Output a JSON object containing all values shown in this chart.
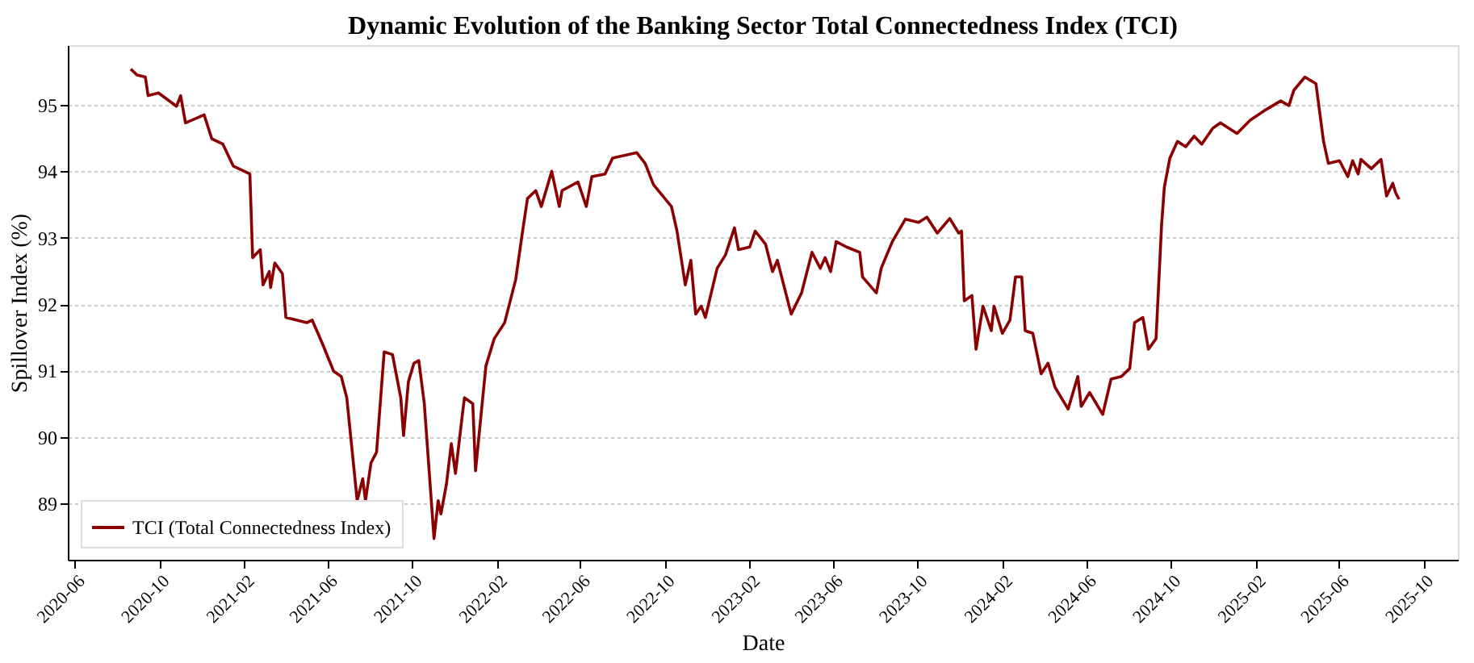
{
  "chart_data": {
    "type": "line",
    "title": "Dynamic Evolution of the Banking Sector Total Connectedness Index (TCI)",
    "xlabel": "Date",
    "ylabel": "Spillover Index (%)",
    "series": [
      {
        "name": "TCI (Total Connectedness Index)",
        "color": "#8b0000",
        "x": [
          "2020-08-21",
          "2020-08-30",
          "2020-09-11",
          "2020-09-15",
          "2020-09-30",
          "2020-10-26",
          "2020-11-01",
          "2020-11-08",
          "2020-12-05",
          "2020-12-16",
          "2021-01-01",
          "2021-01-16",
          "2021-02-01",
          "2021-02-09",
          "2021-02-13",
          "2021-02-24",
          "2021-02-28",
          "2021-03-09",
          "2021-03-11",
          "2021-03-17",
          "2021-03-28",
          "2021-04-02",
          "2021-05-02",
          "2021-05-10",
          "2021-05-25",
          "2021-06-10",
          "2021-06-21",
          "2021-06-29",
          "2021-07-14",
          "2021-07-22",
          "2021-07-26",
          "2021-08-03",
          "2021-08-11",
          "2021-08-22",
          "2021-09-03",
          "2021-09-15",
          "2021-09-19",
          "2021-09-26",
          "2021-10-04",
          "2021-10-11",
          "2021-10-19",
          "2021-11-02",
          "2021-11-08",
          "2021-11-12",
          "2021-11-20",
          "2021-11-27",
          "2021-12-03",
          "2021-12-13",
          "2021-12-16",
          "2021-12-28",
          "2022-01-01",
          "2022-01-09",
          "2022-01-16",
          "2022-01-28",
          "2022-02-12",
          "2022-02-28",
          "2022-03-10",
          "2022-03-17",
          "2022-03-29",
          "2022-04-06",
          "2022-04-21",
          "2022-05-02",
          "2022-05-06",
          "2022-05-29",
          "2022-06-10",
          "2022-06-18",
          "2022-07-07",
          "2022-07-18",
          "2022-08-22",
          "2022-09-03",
          "2022-09-15",
          "2022-10-11",
          "2022-10-19",
          "2022-10-31",
          "2022-11-08",
          "2022-11-15",
          "2022-11-23",
          "2022-11-29",
          "2022-12-16",
          "2022-12-28",
          "2023-01-10",
          "2023-01-16",
          "2023-02-01",
          "2023-02-09",
          "2023-02-24",
          "2023-03-06",
          "2023-03-13",
          "2023-04-02",
          "2023-04-17",
          "2023-05-02",
          "2023-05-14",
          "2023-05-21",
          "2023-05-29",
          "2023-06-06",
          "2023-06-21",
          "2023-07-10",
          "2023-07-14",
          "2023-08-03",
          "2023-08-10",
          "2023-08-26",
          "2023-09-14",
          "2023-10-03",
          "2023-10-15",
          "2023-10-30",
          "2023-11-17",
          "2023-11-30",
          "2023-12-04",
          "2023-12-08",
          "2023-12-19",
          "2023-12-25",
          "2024-01-04",
          "2024-01-16",
          "2024-01-20",
          "2024-02-01",
          "2024-02-12",
          "2024-02-20",
          "2024-02-29",
          "2024-03-05",
          "2024-03-16",
          "2024-03-28",
          "2024-04-07",
          "2024-04-17",
          "2024-05-06",
          "2024-05-20",
          "2024-05-25",
          "2024-06-06",
          "2024-06-25",
          "2024-07-07",
          "2024-07-22",
          "2024-08-03",
          "2024-08-10",
          "2024-08-22",
          "2024-08-30",
          "2024-09-10",
          "2024-09-18",
          "2024-09-22",
          "2024-09-30",
          "2024-10-11",
          "2024-10-23",
          "2024-11-04",
          "2024-11-15",
          "2024-12-01",
          "2024-12-12",
          "2025-01-05",
          "2025-01-24",
          "2025-02-16",
          "2025-03-09",
          "2025-03-21",
          "2025-03-28",
          "2025-04-13",
          "2025-04-29",
          "2025-05-10",
          "2025-05-17",
          "2025-06-02",
          "2025-06-14",
          "2025-06-21",
          "2025-06-29",
          "2025-07-03",
          "2025-07-18",
          "2025-08-01",
          "2025-08-09",
          "2025-08-18",
          "2025-08-22",
          "2025-08-27"
        ],
        "values": [
          95.54,
          95.45,
          95.42,
          95.14,
          95.18,
          94.98,
          95.14,
          94.73,
          94.85,
          94.49,
          94.41,
          94.08,
          94.0,
          93.96,
          92.7,
          92.82,
          92.29,
          92.49,
          92.25,
          92.62,
          92.46,
          91.8,
          91.72,
          91.76,
          91.4,
          90.99,
          90.91,
          90.59,
          89.04,
          89.37,
          89.04,
          89.61,
          89.77,
          91.28,
          91.24,
          90.59,
          90.02,
          90.83,
          91.11,
          91.15,
          90.5,
          88.47,
          89.04,
          88.84,
          89.29,
          89.9,
          89.45,
          90.34,
          90.59,
          90.5,
          89.49,
          90.34,
          91.07,
          91.48,
          91.72,
          92.37,
          93.1,
          93.59,
          93.71,
          93.47,
          94.0,
          93.47,
          93.71,
          93.84,
          93.47,
          93.92,
          93.96,
          94.2,
          94.28,
          94.12,
          93.8,
          93.47,
          93.1,
          92.29,
          92.66,
          91.85,
          91.97,
          91.8,
          92.54,
          92.74,
          93.15,
          92.82,
          92.86,
          93.1,
          92.9,
          92.49,
          92.66,
          91.85,
          92.17,
          92.78,
          92.54,
          92.7,
          92.49,
          92.94,
          92.86,
          92.78,
          92.41,
          92.17,
          92.54,
          92.94,
          93.28,
          93.23,
          93.31,
          93.07,
          93.29,
          93.07,
          93.1,
          92.05,
          92.13,
          91.32,
          91.97,
          91.6,
          91.97,
          91.56,
          91.76,
          92.41,
          92.41,
          91.6,
          91.56,
          90.95,
          91.11,
          90.75,
          90.42,
          90.91,
          90.46,
          90.67,
          90.34,
          90.87,
          90.91,
          91.03,
          91.72,
          91.8,
          91.32,
          91.48,
          93.19,
          93.76,
          94.2,
          94.45,
          94.37,
          94.53,
          94.41,
          94.65,
          94.73,
          94.57,
          94.77,
          94.93,
          95.06,
          94.99,
          95.22,
          95.42,
          95.32,
          94.45,
          94.12,
          94.16,
          93.92,
          94.16,
          93.96,
          94.18,
          94.04,
          94.18,
          93.63,
          93.82,
          93.68,
          93.58
        ]
      }
    ],
    "xlim": [
      "2020-05-22",
      "2025-11-20"
    ],
    "xticks": [
      "2020-06",
      "2020-10",
      "2021-02",
      "2021-06",
      "2021-10",
      "2022-02",
      "2022-06",
      "2022-10",
      "2023-02",
      "2023-06",
      "2023-10",
      "2024-02",
      "2024-06",
      "2024-10",
      "2025-02",
      "2025-06",
      "2025-10"
    ],
    "ylim": [
      88.15,
      95.9
    ],
    "yticks": [
      89,
      90,
      91,
      92,
      93,
      94,
      95
    ],
    "grid": "y",
    "legend": "bottom left",
    "line_style": "solid",
    "marker": "none"
  }
}
